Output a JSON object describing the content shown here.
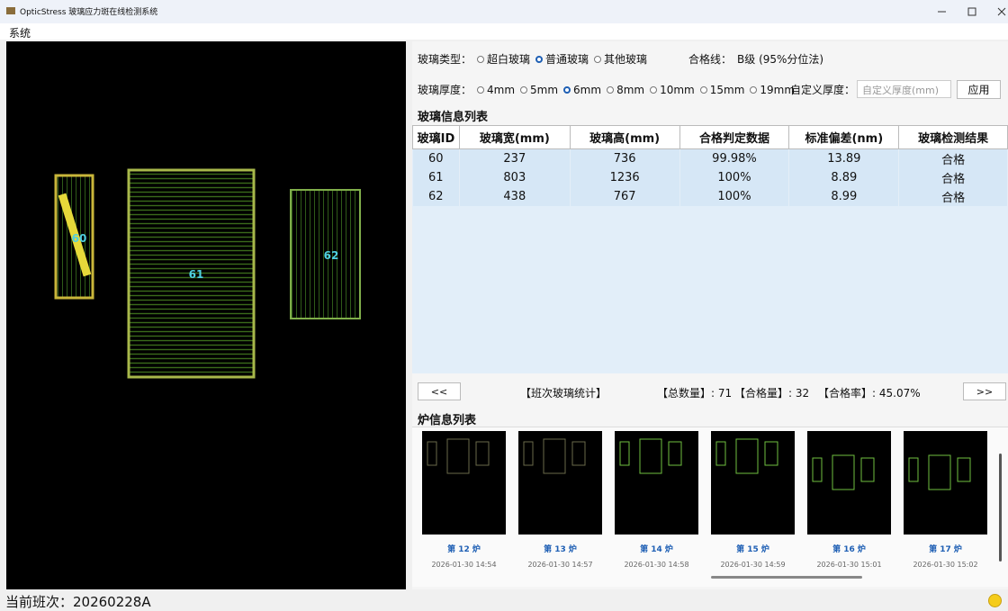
{
  "window": {
    "title": "OpticStress 玻璃应力斑在线检测系统"
  },
  "menu": [
    "系统"
  ],
  "image": {
    "glasses": [
      "60",
      "61",
      "62"
    ]
  },
  "settings": {
    "glass_type": {
      "label": "玻璃类型：",
      "options": [
        {
          "label": "超白玻璃",
          "selected": false
        },
        {
          "label": "普通玻璃",
          "selected": true
        },
        {
          "label": "其他玻璃",
          "selected": false
        }
      ]
    },
    "pass_line": {
      "label": "合格线：",
      "value": "B级 (95%分位法)"
    },
    "thickness": {
      "label": "玻璃厚度：",
      "options": [
        {
          "label": "4mm",
          "selected": false
        },
        {
          "label": "5mm",
          "selected": false
        },
        {
          "label": "6mm",
          "selected": true
        },
        {
          "label": "8mm",
          "selected": false
        },
        {
          "label": "10mm",
          "selected": false
        },
        {
          "label": "15mm",
          "selected": false
        },
        {
          "label": "19mm",
          "selected": false
        }
      ]
    },
    "custom_thickness": {
      "label": "自定义厚度：",
      "placeholder": "自定义厚度(mm)",
      "button": "应用"
    }
  },
  "glass_table": {
    "title": "玻璃信息列表",
    "columns": [
      "玻璃ID",
      "玻璃宽(mm)",
      "玻璃高(mm)",
      "合格判定数据",
      "标准偏差(nm)",
      "玻璃检测结果"
    ],
    "rows": [
      [
        60,
        237,
        736,
        "99.98%",
        13.89,
        "合格"
      ],
      [
        61,
        803,
        1236,
        "100%",
        8.89,
        "合格"
      ],
      [
        62,
        438,
        767,
        "100%",
        8.99,
        "合格"
      ]
    ]
  },
  "stats": {
    "prev": "<<",
    "title": "【班次玻璃统计】",
    "total": "【总数量】: 71",
    "passed": "【合格量】: 32",
    "rate": "【合格率】: 45.07%",
    "next": ">>"
  },
  "furnaces": {
    "title": "炉信息列表",
    "items": [
      {
        "label": "第 12 炉",
        "time": "2026-01-30 14:54"
      },
      {
        "label": "第 13 炉",
        "time": "2026-01-30 14:57"
      },
      {
        "label": "第 14 炉",
        "time": "2026-01-30 14:58"
      },
      {
        "label": "第 15 炉",
        "time": "2026-01-30 14:59"
      },
      {
        "label": "第 16 炉",
        "time": "2026-01-30 15:01"
      },
      {
        "label": "第 17 炉",
        "time": "2026-01-30 15:02"
      }
    ]
  },
  "status": {
    "shift": "当前班次：20260228A"
  }
}
